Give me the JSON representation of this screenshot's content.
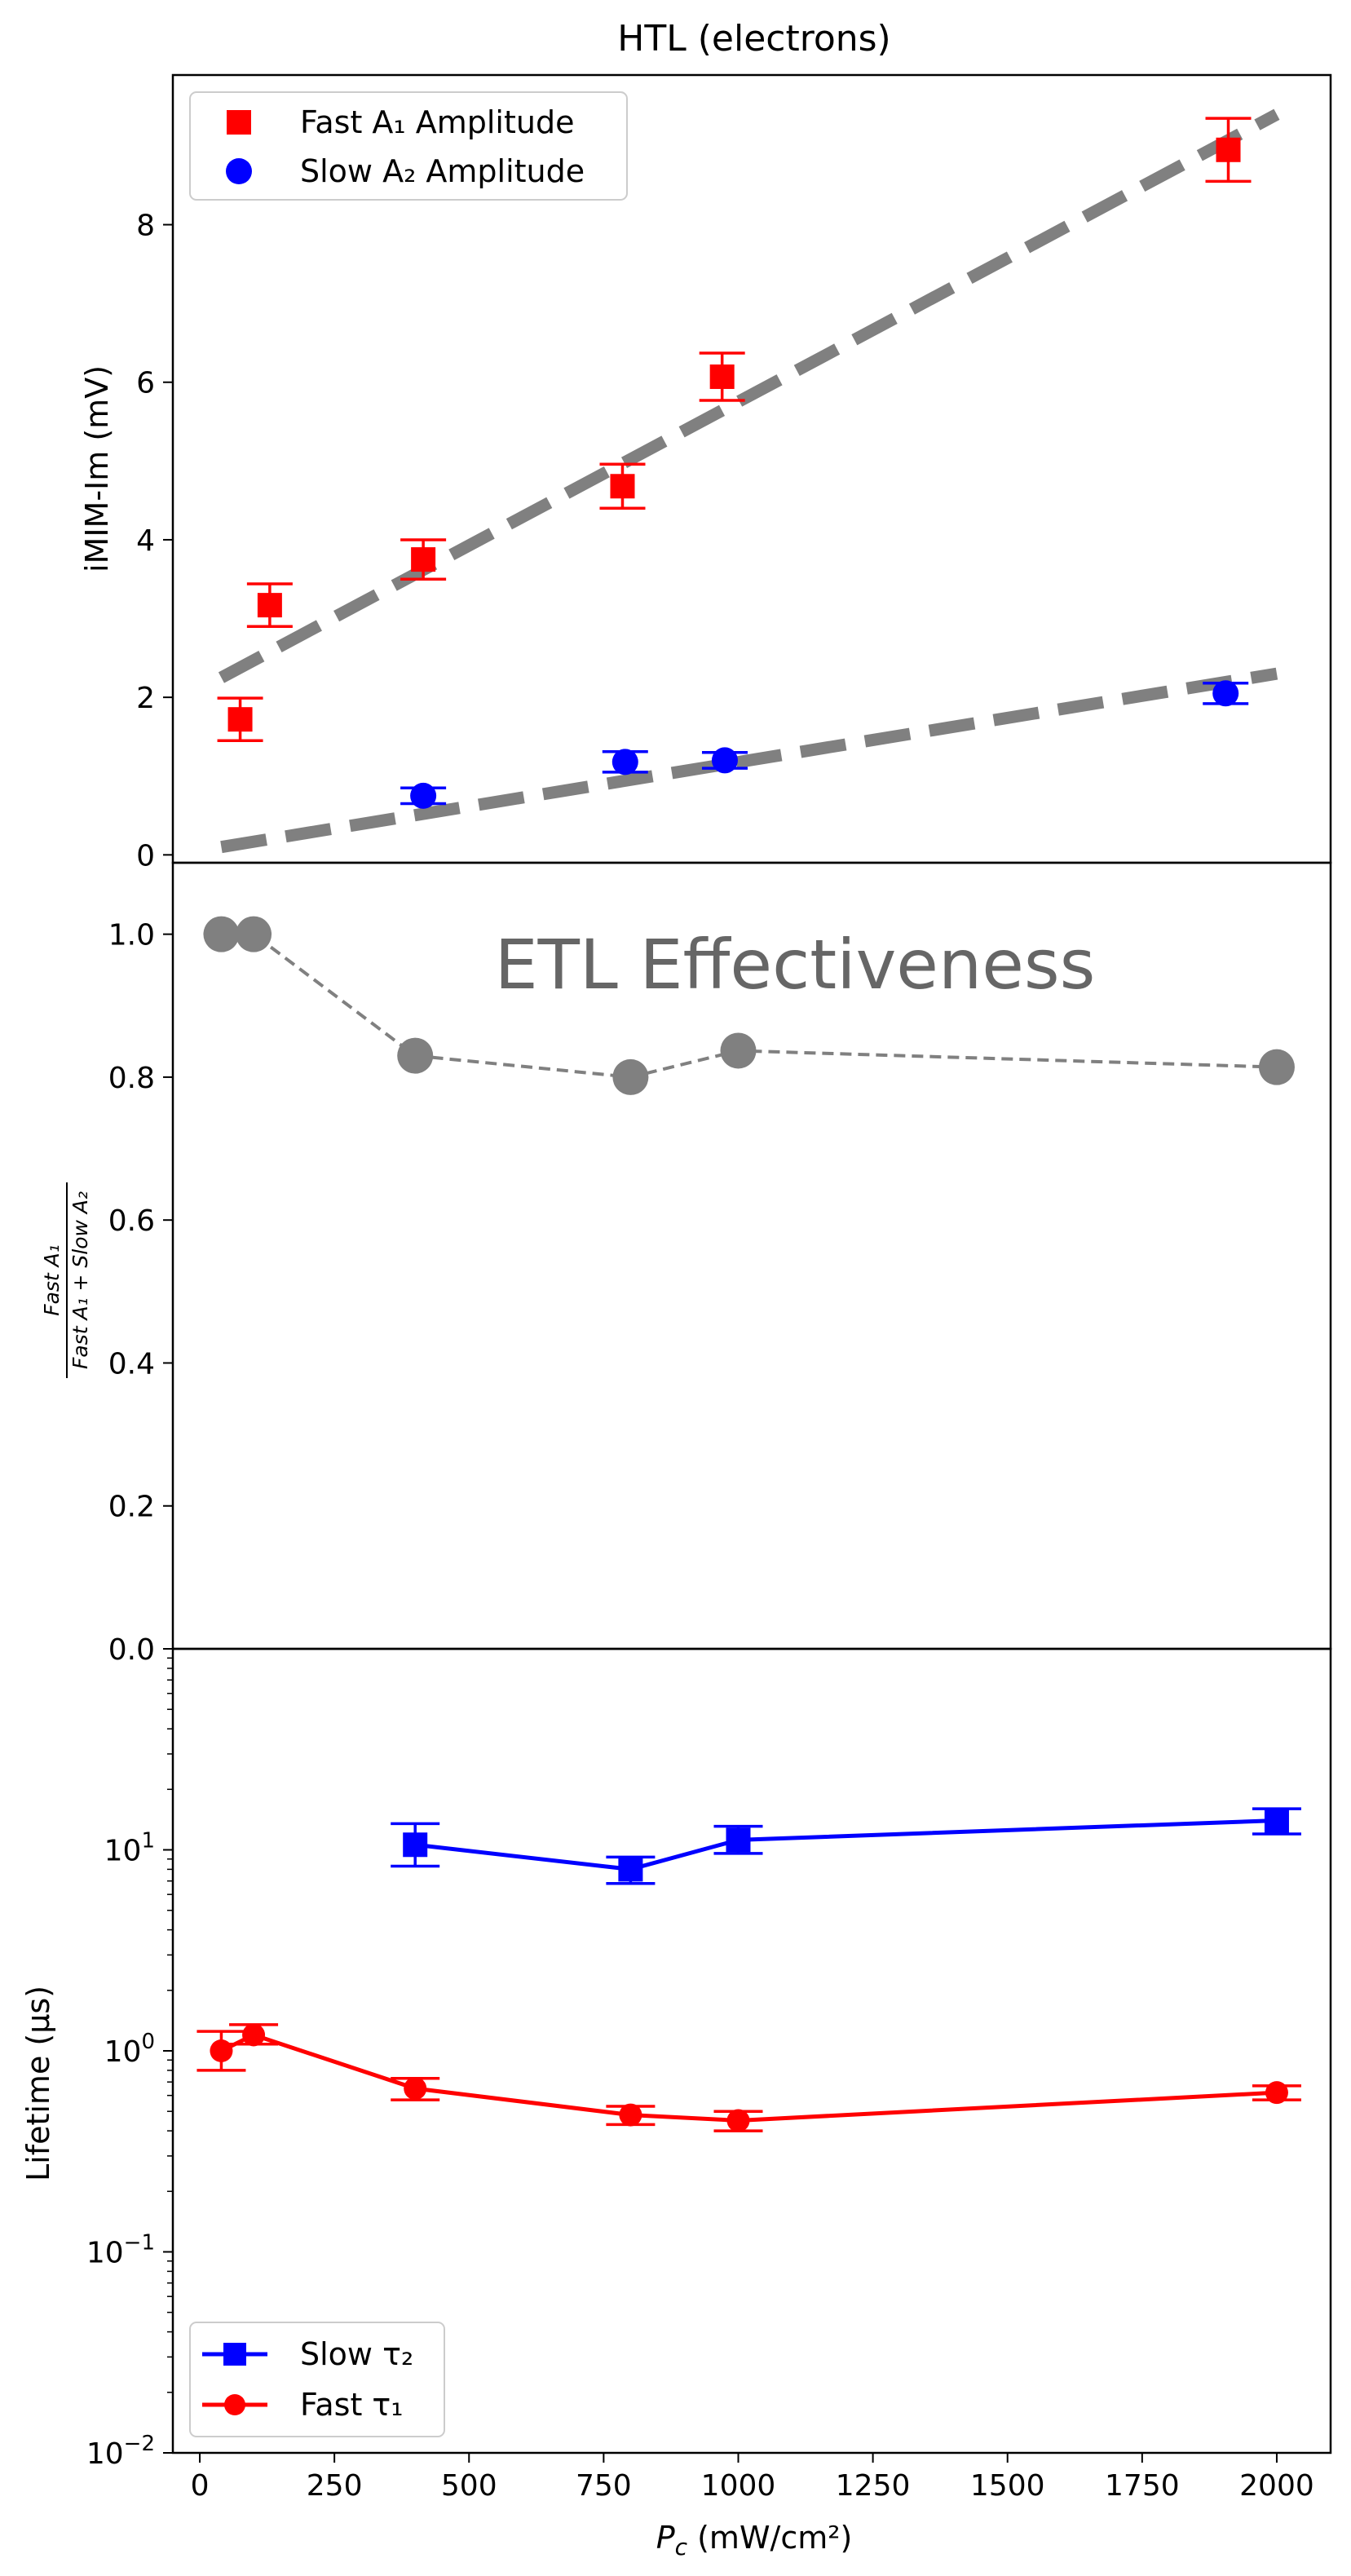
{
  "figure": {
    "title": "HTL (electrons)",
    "xlabel_main": "P",
    "xlabel_sub": "c",
    "xlabel_units": " (mW/cm²)"
  },
  "colors": {
    "fast": "#ff0000",
    "slow": "#0000ff",
    "fit": "#808080",
    "ratio": "#808080",
    "annotation": "#666666"
  },
  "chart_data": [
    {
      "type": "scatter",
      "panel": "top",
      "ylabel": "iMIM-Im (mV)",
      "xlim": [
        -50,
        2100
      ],
      "ylim": [
        -0.1,
        9.9
      ],
      "yticks": [
        0,
        2,
        4,
        6,
        8
      ],
      "legend_position": "top-left",
      "series": [
        {
          "name": "Fast A₁ Amplitude",
          "marker": "square",
          "color": "#ff0000",
          "x": [
            75,
            130,
            415,
            785,
            970,
            1910
          ],
          "y": [
            1.72,
            3.17,
            3.75,
            4.68,
            6.07,
            8.95
          ],
          "err": [
            0.27,
            0.27,
            0.25,
            0.28,
            0.3,
            0.4
          ]
        },
        {
          "name": "Slow A₂ Amplitude",
          "marker": "circle",
          "color": "#0000ff",
          "x": [
            415,
            790,
            975,
            1905
          ],
          "y": [
            0.75,
            1.18,
            1.2,
            2.05
          ],
          "err": [
            0.1,
            0.13,
            0.1,
            0.13
          ]
        }
      ],
      "fit_lines": [
        {
          "x": [
            40,
            2000
          ],
          "y": [
            2.25,
            9.4
          ]
        },
        {
          "x": [
            40,
            2000
          ],
          "y": [
            0.1,
            2.3
          ]
        }
      ]
    },
    {
      "type": "line",
      "panel": "middle",
      "ylabel": "Fast A₁ / (Fast A₁ + Slow A₂)",
      "ylabel_num": "Fast A₁",
      "ylabel_den": "Fast A₁ + Slow A₂",
      "annotation": "ETL Effectiveness",
      "xlim": [
        -50,
        2100
      ],
      "ylim": [
        0.0,
        1.1
      ],
      "yticks": [
        0.2,
        0.4,
        0.6,
        0.8,
        1.0
      ],
      "series": [
        {
          "marker": "circle",
          "linestyle": "dashed",
          "color": "#808080",
          "x": [
            40,
            100,
            400,
            800,
            1000,
            2000
          ],
          "y": [
            1.0,
            1.0,
            0.83,
            0.8,
            0.837,
            0.814
          ]
        }
      ]
    },
    {
      "type": "line",
      "panel": "bottom",
      "ylabel": "Lifetime (µs)",
      "yscale": "log",
      "xlim": [
        -50,
        2100
      ],
      "ylim": [
        0.01,
        100
      ],
      "ytick_labels": [
        {
          "value": 0.01,
          "base": "10",
          "exp": "−2"
        },
        {
          "value": 0.1,
          "base": "10",
          "exp": "−1"
        },
        {
          "value": 1,
          "base": "10",
          "exp": "0"
        },
        {
          "value": 10,
          "base": "10",
          "exp": "1"
        },
        {
          "value": 100,
          "base": "0.0",
          "exp": ""
        }
      ],
      "xticks": [
        0,
        250,
        500,
        750,
        1000,
        1250,
        1500,
        1750,
        2000
      ],
      "legend_position": "bottom-left",
      "series": [
        {
          "name": "Slow τ₂",
          "marker": "square",
          "color": "#0000ff",
          "x": [
            400,
            800,
            1000,
            2000
          ],
          "y": [
            10.6,
            8.0,
            11.2,
            14.0
          ],
          "err_low": [
            2.3,
            1.2,
            1.6,
            2.0
          ],
          "err_high": [
            2.9,
            1.2,
            1.9,
            2.0
          ]
        },
        {
          "name": "Fast τ₁",
          "marker": "circle",
          "color": "#ff0000",
          "x": [
            40,
            100,
            400,
            800,
            1000,
            2000
          ],
          "y": [
            1.0,
            1.2,
            0.65,
            0.48,
            0.45,
            0.62
          ],
          "err_low": [
            0.2,
            0.12,
            0.08,
            0.05,
            0.05,
            0.05
          ],
          "err_high": [
            0.25,
            0.15,
            0.08,
            0.05,
            0.05,
            0.05
          ]
        }
      ]
    }
  ]
}
